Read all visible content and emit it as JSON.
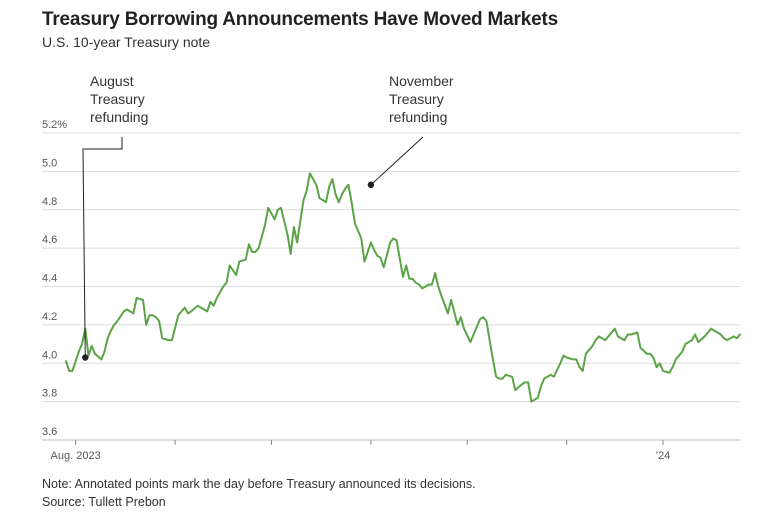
{
  "header": {
    "title": "Treasury Borrowing Announcements Have Moved Markets",
    "subtitle": "U.S. 10-year Treasury note"
  },
  "footer": {
    "note": "Note: Annotated points mark the day before Treasury announced its decisions.",
    "source": "Source: Tullett Prebon"
  },
  "colors": {
    "line": "#5aa346",
    "grid": "#dcdcdc",
    "marker": "#222222"
  },
  "chart_data": {
    "type": "line",
    "title": "Treasury Borrowing Announcements Have Moved Markets",
    "subtitle": "U.S. 10-year Treasury note",
    "xlabel": "",
    "ylabel": "",
    "ylim": [
      3.6,
      5.2
    ],
    "y_ticks": [
      3.6,
      3.8,
      4.0,
      4.2,
      4.4,
      4.6,
      4.8,
      5.0,
      5.2
    ],
    "y_tick_labels": [
      "3.6",
      "3.8",
      "4.0",
      "4.2",
      "4.4",
      "4.6",
      "4.8",
      "5.0",
      "5.2%"
    ],
    "x_tick_labels": [
      {
        "label": "Aug. 2023",
        "day": 3
      },
      {
        "label": "",
        "day": 34
      },
      {
        "label": "",
        "day": 64
      },
      {
        "label": "",
        "day": 95
      },
      {
        "label": "",
        "day": 125
      },
      {
        "label": "",
        "day": 156
      },
      {
        "label": "’24",
        "day": 186
      }
    ],
    "x_range_days": [
      0,
      210
    ],
    "grid": true,
    "series": [
      {
        "name": "U.S. 10-year Treasury note yield (%)",
        "x": [
          0,
          1,
          2,
          4,
          5,
          6,
          7,
          8,
          9,
          11,
          12,
          13,
          14,
          15,
          16,
          18,
          19,
          21,
          22,
          24,
          25,
          26,
          27,
          28,
          29,
          30,
          32,
          33,
          35,
          36,
          37,
          38,
          39,
          41,
          42,
          44,
          45,
          46,
          47,
          49,
          50,
          51,
          53,
          54,
          56,
          57,
          58,
          59,
          60,
          62,
          63,
          65,
          66,
          67,
          69,
          70,
          71,
          72,
          74,
          75,
          76,
          78,
          79,
          81,
          82,
          83,
          84,
          85,
          86,
          87,
          88,
          89,
          90,
          92,
          93,
          95,
          96,
          97,
          98,
          99,
          101,
          102,
          103,
          105,
          106,
          107,
          108,
          109,
          110,
          111,
          113,
          114,
          115,
          116,
          117,
          119,
          120,
          122,
          123,
          124,
          126,
          127,
          128,
          129,
          130,
          131,
          133,
          134,
          135,
          136,
          137,
          139,
          140,
          142,
          143,
          144,
          145,
          147,
          148,
          149,
          151,
          152,
          154,
          155,
          156,
          158,
          159,
          160,
          161,
          162,
          164,
          165,
          166,
          167,
          168,
          170,
          171,
          172,
          174,
          175,
          176,
          178,
          179,
          181,
          182,
          183,
          184,
          185,
          186,
          188,
          189,
          190,
          192,
          193,
          195,
          196,
          197,
          199,
          200,
          201,
          203,
          204,
          205,
          206,
          207,
          208,
          209,
          210
        ],
        "y": [
          4.01,
          3.96,
          3.96,
          4.06,
          4.1,
          4.18,
          4.04,
          4.09,
          4.05,
          4.02,
          4.06,
          4.13,
          4.17,
          4.2,
          4.22,
          4.27,
          4.28,
          4.26,
          4.34,
          4.33,
          4.2,
          4.25,
          4.25,
          4.24,
          4.22,
          4.13,
          4.12,
          4.12,
          4.25,
          4.27,
          4.29,
          4.26,
          4.27,
          4.3,
          4.29,
          4.27,
          4.32,
          4.3,
          4.34,
          4.4,
          4.42,
          4.51,
          4.46,
          4.53,
          4.54,
          4.62,
          4.58,
          4.58,
          4.6,
          4.72,
          4.81,
          4.75,
          4.8,
          4.81,
          4.67,
          4.57,
          4.71,
          4.63,
          4.85,
          4.9,
          4.99,
          4.93,
          4.86,
          4.84,
          4.92,
          4.96,
          4.88,
          4.84,
          4.88,
          4.91,
          4.93,
          4.84,
          4.73,
          4.65,
          4.53,
          4.63,
          4.59,
          4.56,
          4.55,
          4.5,
          4.63,
          4.65,
          4.64,
          4.45,
          4.51,
          4.44,
          4.44,
          4.42,
          4.41,
          4.39,
          4.41,
          4.41,
          4.47,
          4.4,
          4.35,
          4.26,
          4.33,
          4.2,
          4.24,
          4.18,
          4.11,
          4.15,
          4.19,
          4.23,
          4.24,
          4.22,
          4.02,
          3.93,
          3.92,
          3.92,
          3.94,
          3.93,
          3.86,
          3.89,
          3.9,
          3.9,
          3.8,
          3.82,
          3.88,
          3.92,
          3.94,
          3.93,
          4.0,
          4.04,
          4.03,
          4.02,
          4.02,
          3.98,
          3.96,
          4.05,
          4.09,
          4.12,
          4.14,
          4.13,
          4.12,
          4.16,
          4.18,
          4.14,
          4.12,
          4.15,
          4.15,
          4.16,
          4.08,
          4.05,
          4.05,
          4.03,
          3.98,
          4.0,
          3.96,
          3.95,
          3.98,
          4.02,
          4.06,
          4.1,
          4.12,
          4.15,
          4.11,
          4.14,
          4.16,
          4.18,
          4.16,
          4.15,
          4.13,
          4.12,
          4.13,
          4.14,
          4.13,
          4.15
        ]
      }
    ],
    "annotations": [
      {
        "lines": [
          "August",
          "Treasury",
          "refunding"
        ],
        "x": 6,
        "y": 4.03
      },
      {
        "lines": [
          "November",
          "Treasury",
          "refunding"
        ],
        "x": 95,
        "y": 4.93
      }
    ]
  }
}
